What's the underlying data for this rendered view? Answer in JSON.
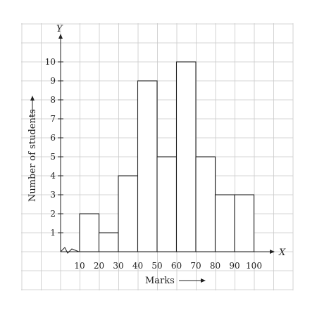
{
  "chart_data": {
    "type": "bar",
    "categories": [
      "10-20",
      "20-30",
      "30-40",
      "40-50",
      "50-60",
      "60-70",
      "70-80",
      "80-90",
      "90-100"
    ],
    "x_ticks": [
      "10",
      "20",
      "30",
      "40",
      "50",
      "60",
      "70",
      "80",
      "90",
      "100"
    ],
    "y_ticks": [
      "1",
      "2",
      "3",
      "4",
      "5",
      "6",
      "7",
      "8",
      "9",
      "10"
    ],
    "values": [
      2,
      1,
      4,
      9,
      5,
      10,
      5,
      3,
      3
    ],
    "xlabel": "Marks",
    "ylabel": "Number of students",
    "x_axis_letter": "X",
    "y_axis_letter": "Y",
    "xlim": [
      10,
      100
    ],
    "ylim": [
      0,
      10
    ],
    "grid": true,
    "axis_break": "zigzag on x-axis near origin"
  }
}
